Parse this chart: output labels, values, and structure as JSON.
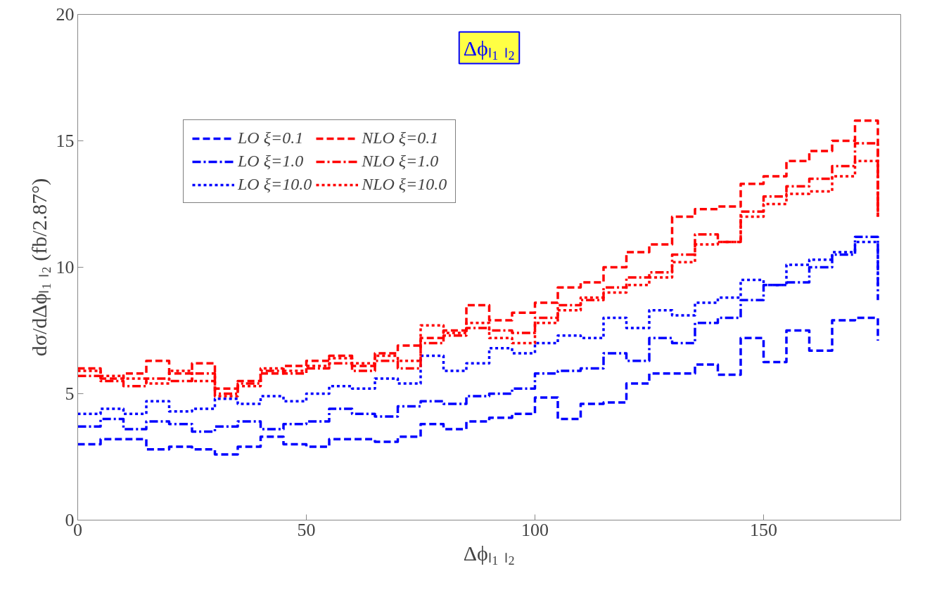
{
  "chart_data": {
    "type": "step",
    "title": "Δϕₗ₁ ₗ₂",
    "xlabel": "Δϕₗ₁ ₗ₂",
    "ylabel": "dσ/dΔϕₗ₁ ₗ₂ (fb/2.87°)",
    "x": [
      0,
      5,
      10,
      15,
      20,
      25,
      30,
      35,
      40,
      45,
      50,
      55,
      60,
      65,
      70,
      75,
      80,
      85,
      90,
      95,
      100,
      105,
      110,
      115,
      120,
      125,
      130,
      135,
      140,
      145,
      150,
      155,
      160,
      165,
      170,
      175
    ],
    "series": [
      {
        "name": "LO ξ=0.1",
        "color": "#0000ff",
        "line_style": "dashed",
        "values": [
          3.0,
          3.2,
          3.2,
          2.8,
          2.9,
          2.8,
          2.6,
          2.9,
          3.3,
          3.0,
          2.9,
          3.2,
          3.2,
          3.1,
          3.3,
          3.8,
          3.6,
          3.9,
          4.05,
          4.2,
          4.85,
          4.0,
          4.6,
          4.65,
          5.4,
          5.8,
          5.8,
          6.15,
          5.75,
          7.2,
          6.25,
          7.5,
          6.7,
          7.9,
          8.0,
          7.1
        ]
      },
      {
        "name": "LO ξ=1.0",
        "color": "#0000ff",
        "line_style": "dashdot",
        "values": [
          3.7,
          4.0,
          3.6,
          3.9,
          3.8,
          3.5,
          3.7,
          3.9,
          3.6,
          3.8,
          3.9,
          4.4,
          4.2,
          4.1,
          4.5,
          4.7,
          4.6,
          4.9,
          5.0,
          5.2,
          5.8,
          5.9,
          6.0,
          6.6,
          6.3,
          7.2,
          7.0,
          7.8,
          8.0,
          8.7,
          9.3,
          9.4,
          10.0,
          10.5,
          11.2,
          8.7
        ]
      },
      {
        "name": "LO ξ=10.0",
        "color": "#0000ff",
        "line_style": "dotted",
        "values": [
          4.2,
          4.4,
          4.2,
          4.7,
          4.3,
          4.4,
          4.8,
          4.6,
          4.9,
          4.7,
          5.0,
          5.3,
          5.2,
          5.6,
          5.4,
          6.5,
          5.9,
          6.2,
          6.8,
          6.6,
          7.0,
          7.3,
          7.2,
          8.0,
          7.6,
          8.3,
          8.1,
          8.6,
          8.8,
          9.5,
          9.3,
          10.1,
          10.3,
          10.6,
          11.0,
          9.2
        ]
      },
      {
        "name": "NLO ξ=0.1",
        "color": "#ff0000",
        "line_style": "dashed",
        "values": [
          6.0,
          5.6,
          5.8,
          6.3,
          5.8,
          6.2,
          5.2,
          5.5,
          5.8,
          6.1,
          6.3,
          6.5,
          6.1,
          6.6,
          6.9,
          7.2,
          7.5,
          8.5,
          7.9,
          8.2,
          8.6,
          9.2,
          9.4,
          10.0,
          10.6,
          10.9,
          12.0,
          12.3,
          12.4,
          13.3,
          13.6,
          14.2,
          14.6,
          15.0,
          15.8,
          12.0
        ]
      },
      {
        "name": "NLO ξ=1.0",
        "color": "#ff0000",
        "line_style": "dashdot",
        "values": [
          5.7,
          5.5,
          5.3,
          5.6,
          5.5,
          5.8,
          5.0,
          5.4,
          5.9,
          5.8,
          6.0,
          6.2,
          5.9,
          6.3,
          6.0,
          7.0,
          7.3,
          7.6,
          7.5,
          7.4,
          8.0,
          8.5,
          8.7,
          9.2,
          9.6,
          9.8,
          10.5,
          11.3,
          11.0,
          12.2,
          12.8,
          13.2,
          13.5,
          14.0,
          14.9,
          12.1
        ]
      },
      {
        "name": "NLO ξ=10.0",
        "color": "#ff0000",
        "line_style": "dotted",
        "values": [
          5.9,
          5.7,
          5.6,
          5.4,
          5.9,
          5.5,
          4.9,
          5.3,
          6.0,
          5.9,
          6.1,
          6.4,
          6.2,
          6.5,
          6.3,
          7.7,
          7.4,
          7.8,
          7.2,
          7.0,
          7.8,
          8.3,
          8.8,
          9.0,
          9.3,
          9.6,
          10.2,
          10.9,
          11.0,
          12.0,
          12.5,
          12.9,
          13.0,
          13.6,
          14.2,
          12.0
        ]
      }
    ],
    "xlim": [
      0,
      180
    ],
    "ylim": [
      0,
      20
    ],
    "xticks": [
      0,
      50,
      100,
      150
    ],
    "yticks": [
      0,
      5,
      10,
      15,
      20
    ],
    "grid": false,
    "legend": "top left"
  }
}
